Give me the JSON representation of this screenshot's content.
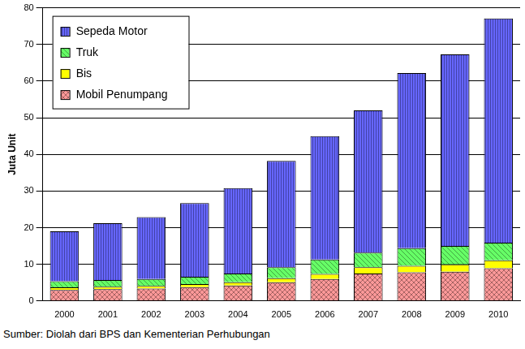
{
  "chart_data": {
    "type": "bar",
    "stacked": true,
    "y_label": "Juta Unit",
    "note": "Sumber: Diolah dari BPS dan Kementerian Perhubungan",
    "categories": [
      "2000",
      "2001",
      "2002",
      "2003",
      "2004",
      "2005",
      "2006",
      "2007",
      "2008",
      "2009",
      "2010"
    ],
    "series": [
      {
        "name": "Mobil Penumpang",
        "color": "#ff9999",
        "values": [
          3.0,
          3.2,
          3.4,
          3.8,
          4.2,
          5.1,
          6.0,
          7.5,
          7.8,
          8.0,
          8.9
        ]
      },
      {
        "name": "Bis",
        "color": "#ffff00",
        "values": [
          0.7,
          0.7,
          0.7,
          0.8,
          0.9,
          1.1,
          1.4,
          1.7,
          1.8,
          2.0,
          2.2
        ]
      },
      {
        "name": "Truk",
        "color": "#66ff66",
        "values": [
          1.7,
          1.8,
          1.9,
          2.0,
          2.4,
          3.0,
          3.9,
          4.0,
          4.8,
          5.0,
          4.8
        ]
      },
      {
        "name": "Sepeda Motor",
        "color": "#6666ff",
        "values": [
          13.6,
          15.5,
          16.9,
          20.1,
          23.3,
          29.0,
          33.7,
          38.8,
          47.8,
          52.3,
          61.2
        ]
      }
    ],
    "ylim": [
      0,
      80
    ],
    "yticks": [
      0,
      10,
      20,
      30,
      40,
      50,
      60,
      70,
      80
    ],
    "grid": true,
    "legend": "upper left"
  }
}
